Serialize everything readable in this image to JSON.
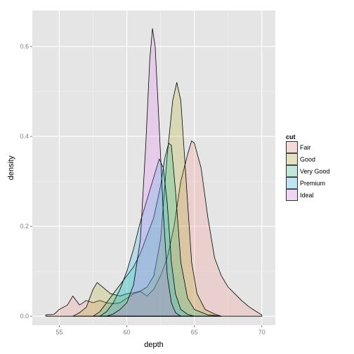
{
  "chart_data": {
    "type": "area",
    "xlabel": "depth",
    "ylabel": "density",
    "xlim": [
      53,
      71
    ],
    "ylim": [
      -0.02,
      0.68
    ],
    "x_ticks": [
      55,
      60,
      65,
      70
    ],
    "y_ticks": [
      0.0,
      0.2,
      0.4,
      0.6
    ],
    "y_tick_labels": [
      "0.0",
      "0.2",
      "0.4",
      "0.6"
    ],
    "grid": true,
    "legend": {
      "title": "cut",
      "placement": "right"
    },
    "colors": {
      "panel_bg": "#e5e5e5",
      "grid_major": "#ffffff",
      "grid_minor": "#f2f2f2",
      "outline": "#000000"
    },
    "series": [
      {
        "name": "Fair",
        "color": "#f8766d",
        "points": [
          [
            54,
            0.003
          ],
          [
            54.6,
            0.004
          ],
          [
            55.0,
            0.015
          ],
          [
            55.6,
            0.025
          ],
          [
            56.0,
            0.045
          ],
          [
            56.5,
            0.025
          ],
          [
            57.0,
            0.035
          ],
          [
            57.5,
            0.03
          ],
          [
            58.0,
            0.035
          ],
          [
            58.5,
            0.03
          ],
          [
            59.0,
            0.028
          ],
          [
            59.5,
            0.03
          ],
          [
            60.0,
            0.04
          ],
          [
            60.5,
            0.05
          ],
          [
            61.0,
            0.055
          ],
          [
            61.5,
            0.045
          ],
          [
            62.0,
            0.06
          ],
          [
            62.5,
            0.09
          ],
          [
            63.0,
            0.13
          ],
          [
            63.5,
            0.2
          ],
          [
            64.0,
            0.3
          ],
          [
            64.5,
            0.36
          ],
          [
            64.8,
            0.39
          ],
          [
            65.0,
            0.385
          ],
          [
            65.5,
            0.33
          ],
          [
            66.0,
            0.22
          ],
          [
            66.5,
            0.13
          ],
          [
            67.0,
            0.09
          ],
          [
            67.5,
            0.065
          ],
          [
            68.0,
            0.05
          ],
          [
            68.5,
            0.035
          ],
          [
            69.0,
            0.022
          ],
          [
            69.5,
            0.012
          ],
          [
            70.0,
            0.003
          ]
        ]
      },
      {
        "name": "Good",
        "color": "#a3a500",
        "points": [
          [
            56.0,
            0.0
          ],
          [
            56.5,
            0.008
          ],
          [
            57.0,
            0.02
          ],
          [
            57.5,
            0.06
          ],
          [
            57.8,
            0.075
          ],
          [
            58.2,
            0.065
          ],
          [
            58.8,
            0.05
          ],
          [
            59.5,
            0.045
          ],
          [
            60.0,
            0.05
          ],
          [
            60.5,
            0.052
          ],
          [
            61.0,
            0.056
          ],
          [
            61.5,
            0.065
          ],
          [
            62.0,
            0.09
          ],
          [
            62.5,
            0.17
          ],
          [
            63.0,
            0.36
          ],
          [
            63.4,
            0.48
          ],
          [
            63.7,
            0.52
          ],
          [
            64.0,
            0.48
          ],
          [
            64.4,
            0.3
          ],
          [
            64.8,
            0.12
          ],
          [
            65.2,
            0.05
          ],
          [
            65.8,
            0.015
          ],
          [
            66.5,
            0.005
          ],
          [
            67.0,
            0.0
          ]
        ]
      },
      {
        "name": "Very Good",
        "color": "#00bf7d",
        "points": [
          [
            57.5,
            0.0
          ],
          [
            58.0,
            0.01
          ],
          [
            58.5,
            0.03
          ],
          [
            59.0,
            0.05
          ],
          [
            59.5,
            0.07
          ],
          [
            60.0,
            0.09
          ],
          [
            60.5,
            0.11
          ],
          [
            61.0,
            0.14
          ],
          [
            61.5,
            0.18
          ],
          [
            62.0,
            0.22
          ],
          [
            62.5,
            0.29
          ],
          [
            62.8,
            0.35
          ],
          [
            63.1,
            0.385
          ],
          [
            63.3,
            0.38
          ],
          [
            63.6,
            0.28
          ],
          [
            64.0,
            0.12
          ],
          [
            64.5,
            0.04
          ],
          [
            65.0,
            0.015
          ],
          [
            66.0,
            0.003
          ],
          [
            67.0,
            0.0
          ]
        ]
      },
      {
        "name": "Premium",
        "color": "#00b0f6",
        "points": [
          [
            58.0,
            0.0
          ],
          [
            58.5,
            0.01
          ],
          [
            59.0,
            0.03
          ],
          [
            59.5,
            0.06
          ],
          [
            60.0,
            0.1
          ],
          [
            60.5,
            0.15
          ],
          [
            61.0,
            0.21
          ],
          [
            61.5,
            0.26
          ],
          [
            62.0,
            0.31
          ],
          [
            62.4,
            0.35
          ],
          [
            62.7,
            0.33
          ],
          [
            63.0,
            0.25
          ],
          [
            63.3,
            0.12
          ],
          [
            63.6,
            0.05
          ],
          [
            64.0,
            0.015
          ],
          [
            64.5,
            0.004
          ],
          [
            65.0,
            0.0
          ]
        ]
      },
      {
        "name": "Ideal",
        "color": "#e76bf3",
        "points": [
          [
            58.5,
            0.0
          ],
          [
            59.0,
            0.005
          ],
          [
            59.5,
            0.015
          ],
          [
            60.0,
            0.03
          ],
          [
            60.5,
            0.07
          ],
          [
            61.0,
            0.17
          ],
          [
            61.4,
            0.38
          ],
          [
            61.7,
            0.57
          ],
          [
            61.9,
            0.64
          ],
          [
            62.1,
            0.6
          ],
          [
            62.4,
            0.42
          ],
          [
            62.7,
            0.23
          ],
          [
            63.0,
            0.09
          ],
          [
            63.3,
            0.03
          ],
          [
            63.6,
            0.008
          ],
          [
            64.0,
            0.0
          ]
        ]
      }
    ]
  }
}
